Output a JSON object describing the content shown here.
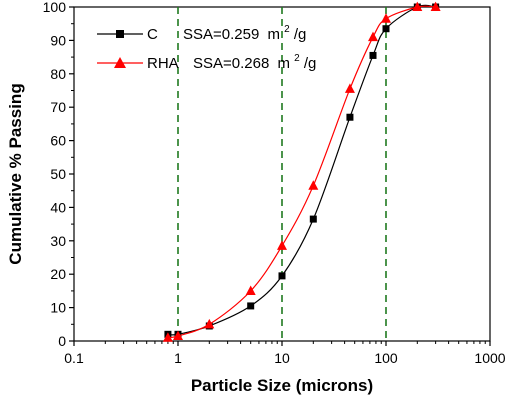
{
  "chart_data": {
    "type": "line",
    "xscale": "log",
    "xlabel": "Particle Size (microns)",
    "ylabel": "Cumulative % Passing",
    "xlim": [
      0.1,
      1000
    ],
    "ylim": [
      0,
      100
    ],
    "x_ticks": [
      0.1,
      1,
      10,
      100,
      1000
    ],
    "x_tick_labels": [
      "0.1",
      "1",
      "10",
      "100",
      "1000"
    ],
    "y_ticks": [
      0,
      10,
      20,
      30,
      40,
      50,
      60,
      70,
      80,
      90,
      100
    ],
    "y_tick_labels": [
      "0",
      "10",
      "20",
      "30",
      "40",
      "50",
      "60",
      "70",
      "80",
      "90",
      "100"
    ],
    "reference_lines_x": [
      1,
      10,
      100
    ],
    "legend_position": "top-left",
    "series": [
      {
        "name": "C",
        "annotation": "SSA=0.259",
        "annotation_unit": "m",
        "annotation_unit_sup": "2",
        "annotation_unit_tail": "/g",
        "color": "#000000",
        "marker": "square",
        "x": [
          0.8,
          1.0,
          2.0,
          5.0,
          10.0,
          20.0,
          45.0,
          75.0,
          100.0,
          200.0,
          300.0
        ],
        "y": [
          2,
          2,
          4.5,
          10.5,
          19.5,
          36.5,
          67,
          85.5,
          93.5,
          100,
          100
        ]
      },
      {
        "name": "RHA",
        "annotation": "SSA=0.268",
        "annotation_unit": "m",
        "annotation_unit_sup": "2",
        "annotation_unit_tail": "/g",
        "color": "#ff0000",
        "marker": "triangle",
        "x": [
          0.8,
          1.0,
          2.0,
          5.0,
          10.0,
          20.0,
          45.0,
          75.0,
          100.0,
          200.0,
          300.0
        ],
        "y": [
          1,
          1.5,
          5,
          15,
          28.5,
          46.5,
          75.5,
          91,
          96.5,
          100,
          100
        ]
      }
    ]
  }
}
